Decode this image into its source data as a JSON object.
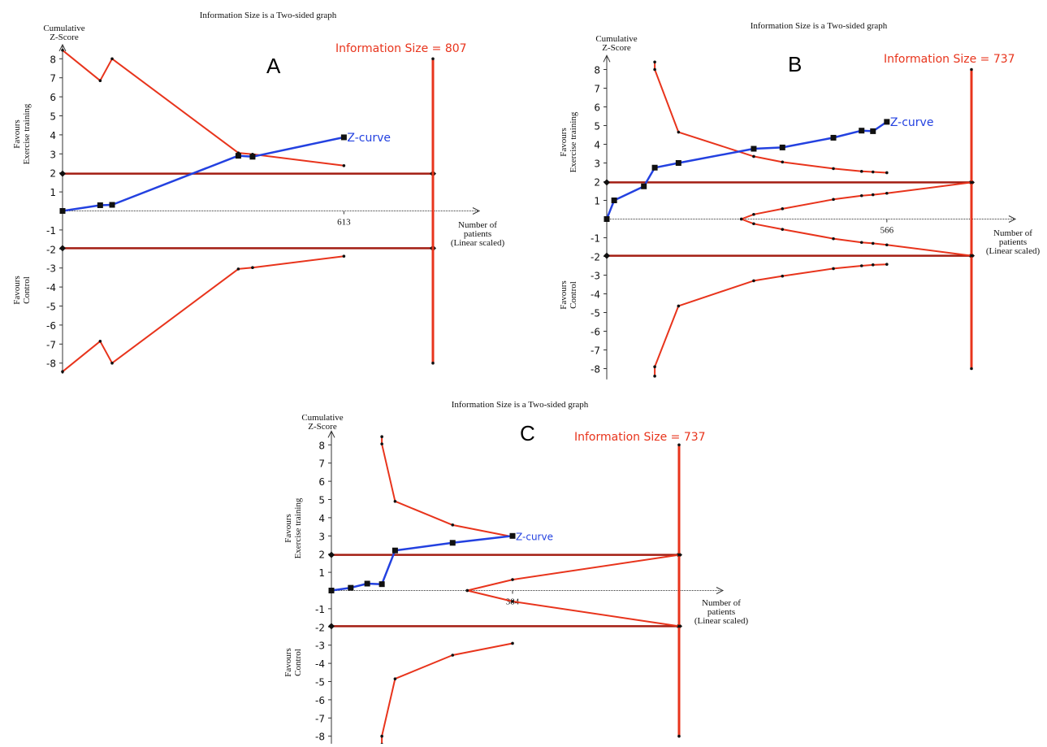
{
  "colors": {
    "boundary": "#e8341c",
    "conventional": "#a31d12",
    "zcurve": "#2341e0",
    "axis": "#333333"
  },
  "chart_data": [
    {
      "type": "line",
      "panel_label": "A",
      "title": "Information Size is a Two-sided graph",
      "information_size_label": "Information Size = 807",
      "ylabel_top": "Cumulative",
      "ylabel_bottom": "Z-Score",
      "favours_upper": [
        "Favours",
        "Exercise training"
      ],
      "favours_lower": [
        "Favours",
        "Control"
      ],
      "xlabel": [
        "Number of",
        "patients",
        "(Linear scaled)"
      ],
      "x_tick": 613,
      "information_size": 807,
      "y_ticks": [
        "8",
        "7",
        "6",
        "5",
        "4",
        "3",
        "2",
        "1",
        "-1",
        "-2",
        "-3",
        "-4",
        "-5",
        "-6",
        "-7",
        "-8"
      ],
      "ylim": [
        -8.4,
        8.4
      ],
      "conventional_boundary": 1.96,
      "z_curve_label": "Z-curve",
      "z_curve": [
        [
          0,
          0
        ],
        [
          82,
          0.3
        ],
        [
          108,
          0.32
        ],
        [
          383,
          2.9
        ],
        [
          414,
          2.85
        ],
        [
          613,
          3.87
        ]
      ],
      "upper_boundary": [
        [
          0,
          8.45
        ],
        [
          82,
          6.85
        ],
        [
          108,
          8.0
        ],
        [
          383,
          3.05
        ],
        [
          414,
          2.98
        ],
        [
          613,
          2.38
        ]
      ],
      "lower_boundary": [
        [
          0,
          -8.45
        ],
        [
          82,
          -6.85
        ],
        [
          108,
          -8.0
        ],
        [
          383,
          -3.05
        ],
        [
          414,
          -2.98
        ],
        [
          613,
          -2.38
        ]
      ],
      "x_max": 807
    },
    {
      "type": "line",
      "panel_label": "B",
      "title": "Information Size is a Two-sided graph",
      "information_size_label": "Information Size = 737",
      "ylabel_top": "Cumulative",
      "ylabel_bottom": "Z-Score",
      "favours_upper": [
        "Favours",
        "Exercise training"
      ],
      "favours_lower": [
        "Favours",
        "Control"
      ],
      "xlabel": [
        "Number of",
        "patients",
        "(Linear scaled)"
      ],
      "x_tick": 566,
      "information_size": 737,
      "y_ticks": [
        "8",
        "7",
        "6",
        "5",
        "4",
        "3",
        "2",
        "1",
        "-1",
        "-2",
        "-3",
        "-4",
        "-5",
        "-6",
        "-7",
        "-8"
      ],
      "ylim": [
        -8.4,
        8.4
      ],
      "conventional_boundary": 1.96,
      "z_curve_label": "Z-curve",
      "z_curve": [
        [
          0,
          0
        ],
        [
          15,
          1.0
        ],
        [
          75,
          1.75
        ],
        [
          97,
          2.75
        ],
        [
          145,
          3.0
        ],
        [
          297,
          3.76
        ],
        [
          355,
          3.83
        ],
        [
          458,
          4.35
        ],
        [
          515,
          4.73
        ],
        [
          538,
          4.7
        ],
        [
          566,
          5.2
        ]
      ],
      "upper_boundary": [
        [
          97,
          8.4
        ],
        [
          97,
          8.0
        ],
        [
          145,
          4.65
        ],
        [
          297,
          3.35
        ],
        [
          355,
          3.05
        ],
        [
          458,
          2.7
        ],
        [
          515,
          2.55
        ],
        [
          538,
          2.52
        ],
        [
          566,
          2.48
        ]
      ],
      "lower_boundary": [
        [
          97,
          -8.4
        ],
        [
          97,
          -7.9
        ],
        [
          145,
          -4.65
        ],
        [
          297,
          -3.3
        ],
        [
          355,
          -3.05
        ],
        [
          458,
          -2.65
        ],
        [
          515,
          -2.5
        ],
        [
          538,
          -2.45
        ],
        [
          566,
          -2.42
        ]
      ],
      "futility_upper": [
        [
          272,
          0
        ],
        [
          297,
          0.25
        ],
        [
          355,
          0.55
        ],
        [
          458,
          1.05
        ],
        [
          515,
          1.25
        ],
        [
          538,
          1.3
        ],
        [
          566,
          1.38
        ],
        [
          737,
          1.96
        ]
      ],
      "futility_lower": [
        [
          272,
          0
        ],
        [
          297,
          -0.25
        ],
        [
          355,
          -0.55
        ],
        [
          458,
          -1.05
        ],
        [
          515,
          -1.25
        ],
        [
          538,
          -1.3
        ],
        [
          566,
          -1.38
        ],
        [
          737,
          -1.96
        ]
      ],
      "x_max": 737
    },
    {
      "type": "line",
      "panel_label": "C",
      "title": "Information Size is a Two-sided graph",
      "information_size_label": "Information Size = 737",
      "ylabel_top": "Cumulative",
      "ylabel_bottom": "Z-Score",
      "favours_upper": [
        "Favours",
        "Exercise training"
      ],
      "favours_lower": [
        "Favours",
        "Control"
      ],
      "xlabel": [
        "Number of",
        "patients",
        "(Linear scaled)"
      ],
      "x_tick": 384,
      "information_size": 737,
      "y_ticks": [
        "8",
        "7",
        "6",
        "5",
        "4",
        "3",
        "2",
        "1",
        "-1",
        "-2",
        "-3",
        "-4",
        "-5",
        "-6",
        "-7",
        "-8"
      ],
      "ylim": [
        -8.4,
        8.4
      ],
      "conventional_boundary": 1.96,
      "z_curve_label": "Z-curve",
      "z_curve": [
        [
          0,
          0
        ],
        [
          41,
          0.15
        ],
        [
          76,
          0.38
        ],
        [
          107,
          0.35
        ],
        [
          135,
          2.2
        ],
        [
          257,
          2.62
        ],
        [
          384,
          3.0
        ]
      ],
      "upper_boundary": [
        [
          107,
          8.45
        ],
        [
          107,
          8.05
        ],
        [
          135,
          4.9
        ],
        [
          257,
          3.6
        ],
        [
          384,
          2.95
        ]
      ],
      "lower_boundary": [
        [
          107,
          -8.45
        ],
        [
          107,
          -8.0
        ],
        [
          135,
          -4.85
        ],
        [
          257,
          -3.55
        ],
        [
          384,
          -2.9
        ]
      ],
      "futility_upper": [
        [
          288,
          0
        ],
        [
          384,
          0.6
        ],
        [
          737,
          1.96
        ]
      ],
      "futility_lower": [
        [
          288,
          0
        ],
        [
          384,
          -0.6
        ],
        [
          737,
          -1.96
        ]
      ],
      "x_max": 737
    }
  ]
}
